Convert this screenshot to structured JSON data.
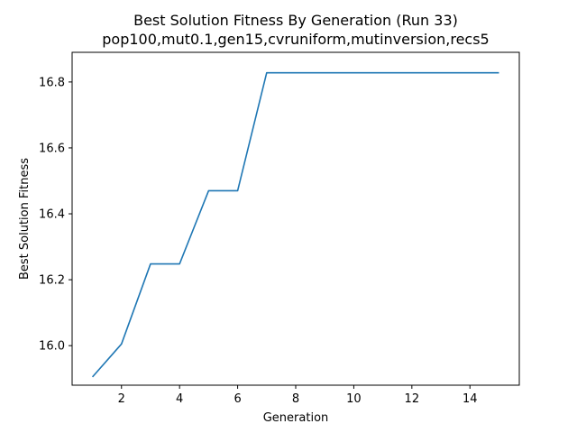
{
  "chart_data": {
    "type": "line",
    "title": "Best Solution Fitness By Generation (Run 33)",
    "subtitle": "pop100,mut0.1,gen15,cvruniform,mutinversion,recs5",
    "xlabel": "Generation",
    "ylabel": "Best Solution Fitness",
    "xlim": [
      0.3,
      15.7
    ],
    "ylim": [
      15.88,
      16.89
    ],
    "xticks": [
      2,
      4,
      6,
      8,
      10,
      12,
      14
    ],
    "yticks": [
      16.0,
      16.2,
      16.4,
      16.6,
      16.8
    ],
    "xtick_labels": [
      "2",
      "4",
      "6",
      "8",
      "10",
      "12",
      "14"
    ],
    "ytick_labels": [
      "16.0",
      "16.2",
      "16.4",
      "16.6",
      "16.8"
    ],
    "grid": false,
    "legend": false,
    "series": [
      {
        "color": "#1f77b4",
        "x": [
          1,
          2,
          3,
          4,
          5,
          6,
          7,
          8,
          9,
          10,
          11,
          12,
          13,
          14,
          15
        ],
        "y": [
          15.905,
          16.005,
          16.248,
          16.248,
          16.47,
          16.47,
          16.828,
          16.828,
          16.828,
          16.828,
          16.828,
          16.828,
          16.828,
          16.828,
          16.828
        ]
      }
    ]
  }
}
